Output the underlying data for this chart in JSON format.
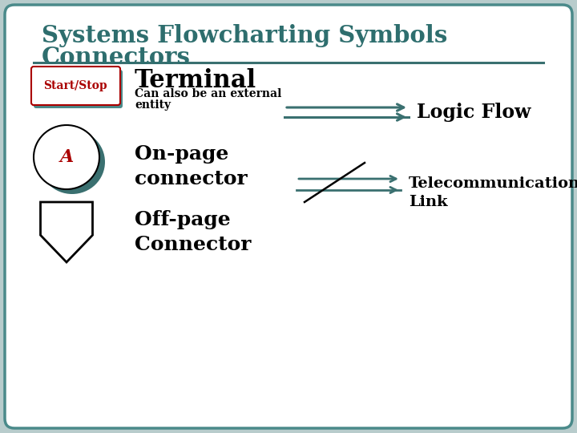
{
  "title_line1": "Systems Flowcharting Symbols",
  "title_line2": "Connectors",
  "title_color": "#2e6e6e",
  "outer_bg": "#b8cccc",
  "border_color": "#4a8a8a",
  "separator_color": "#3a7070",
  "start_stop_text": "Start/Stop",
  "start_stop_text_color": "#aa0000",
  "start_stop_border": "#aa0000",
  "start_stop_shadow": "#4a8a8a",
  "terminal_label": "Terminal",
  "terminal_sub": "Can also be an external\nentity",
  "logic_flow_label": "Logic Flow",
  "logic_arrow_color": "#3a7070",
  "on_page_label": "On-page\nconnector",
  "on_page_letter": "A",
  "on_page_letter_color": "#aa0000",
  "on_page_shadow": "#3a7070",
  "off_page_label": "Off-page\nConnector",
  "telecom_label": "Telecommunication\nLink",
  "telecom_arrow_color": "#3a7070",
  "text_color": "#000000",
  "symbol_color": "#000000"
}
